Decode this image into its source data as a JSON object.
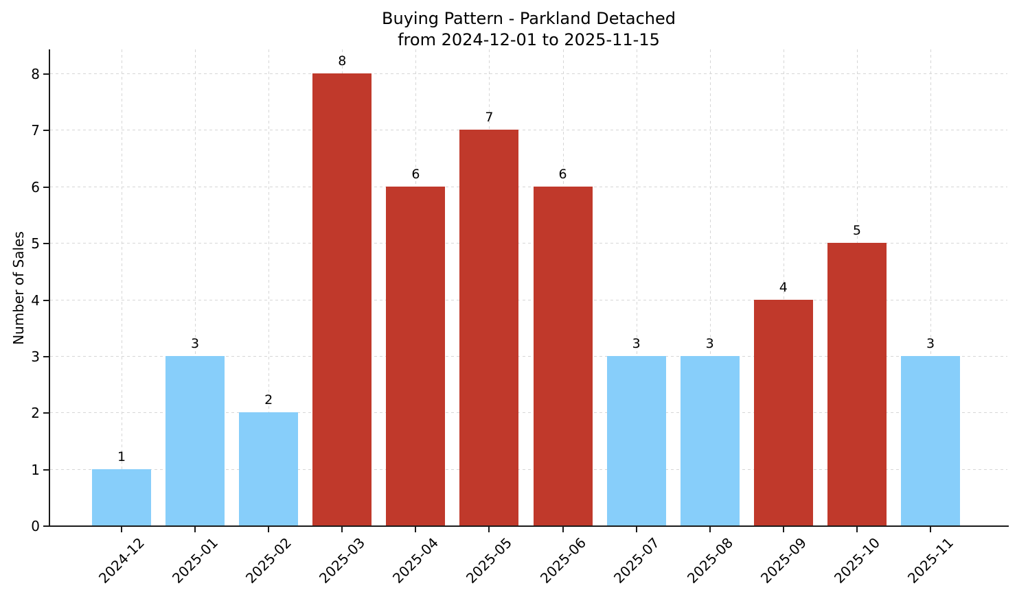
{
  "chart_data": {
    "type": "bar",
    "title_line1": "Buying Pattern - Parkland Detached",
    "title_line2": "from 2024-12-01 to 2025-11-15",
    "ylabel": "Number of Sales",
    "xlabel": "",
    "categories": [
      "2024-12",
      "2025-01",
      "2025-02",
      "2025-03",
      "2025-04",
      "2025-05",
      "2025-06",
      "2025-07",
      "2025-08",
      "2025-09",
      "2025-10",
      "2025-11"
    ],
    "values": [
      1,
      3,
      2,
      8,
      6,
      7,
      6,
      3,
      3,
      4,
      5,
      3
    ],
    "bar_colors": [
      "#87CEFA",
      "#87CEFA",
      "#87CEFA",
      "#C0392B",
      "#C0392B",
      "#C0392B",
      "#C0392B",
      "#87CEFA",
      "#87CEFA",
      "#C0392B",
      "#C0392B",
      "#87CEFA"
    ],
    "colors": {
      "low_month": "#87CEFA",
      "high_month": "#C0392B",
      "grid": "#d6d6d6",
      "spine": "#1a1a1a"
    },
    "yticks": [
      0,
      1,
      2,
      3,
      4,
      5,
      6,
      7,
      8
    ],
    "ylim": [
      0,
      8.4
    ],
    "grid": true,
    "grid_style": "dashed",
    "legend": null,
    "value_labels_shown": true
  }
}
